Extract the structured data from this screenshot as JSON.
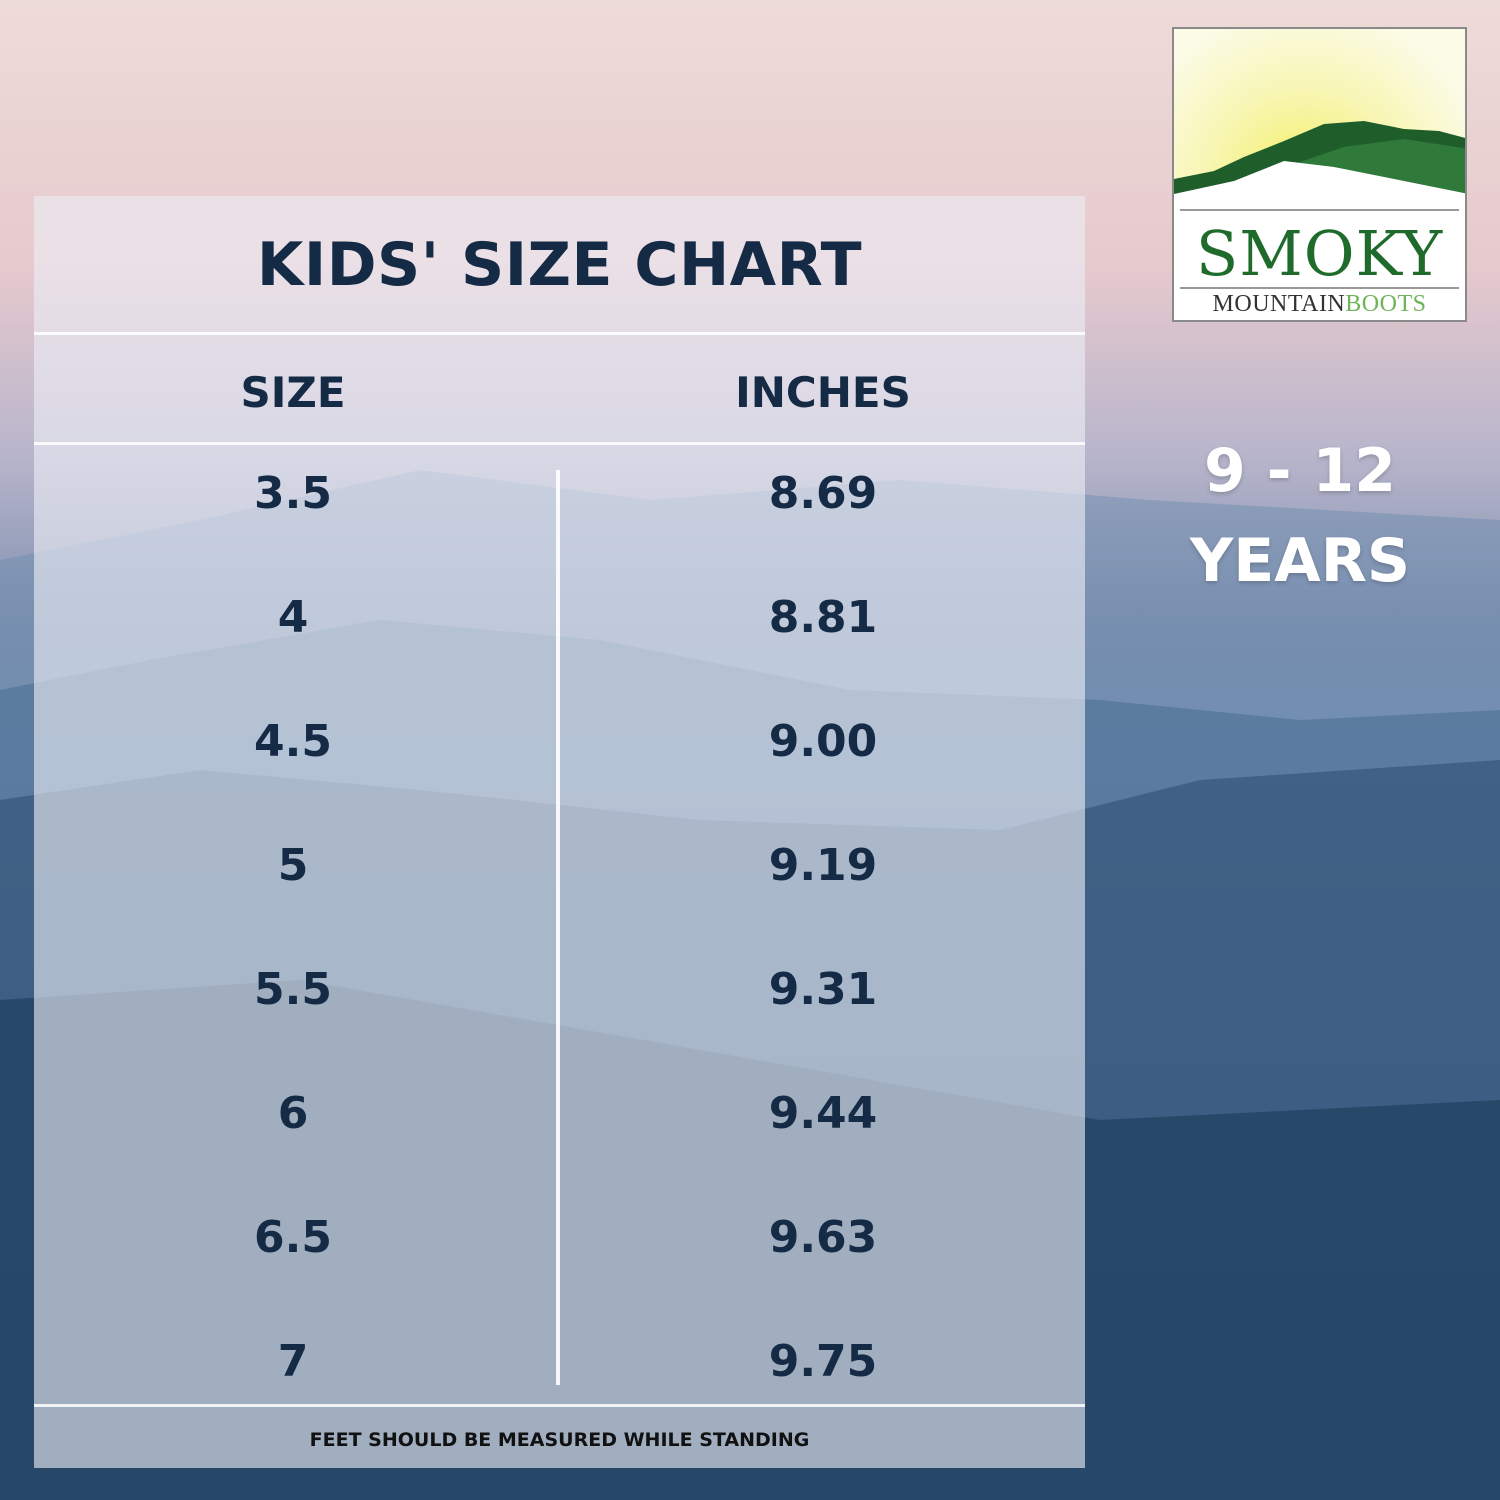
{
  "title": "KIDS' SIZE CHART",
  "columns": [
    "SIZE",
    "INCHES"
  ],
  "rows": [
    {
      "size": "3.5",
      "inches": "8.69"
    },
    {
      "size": "4",
      "inches": "8.81"
    },
    {
      "size": "4.5",
      "inches": "9.00"
    },
    {
      "size": "5",
      "inches": "9.19"
    },
    {
      "size": "5.5",
      "inches": "9.31"
    },
    {
      "size": "6",
      "inches": "9.44"
    },
    {
      "size": "6.5",
      "inches": "9.63"
    },
    {
      "size": "7",
      "inches": "9.75"
    }
  ],
  "footnote": "FEET SHOULD BE MEASURED WHILE STANDING",
  "age_range": {
    "line1": "9 - 12",
    "line2": "YEARS"
  },
  "logo": {
    "word1": "SMOKY",
    "word2a": "MOUNTAIN",
    "word2b": "BOOTS",
    "colors": {
      "dark_green": "#1f5e2a",
      "mid_green": "#2f7a3a",
      "light_green": "#6fb35a",
      "sun": "#f2ee5e"
    }
  },
  "colors": {
    "text": "#152a45",
    "panel": "#ebeef6"
  }
}
